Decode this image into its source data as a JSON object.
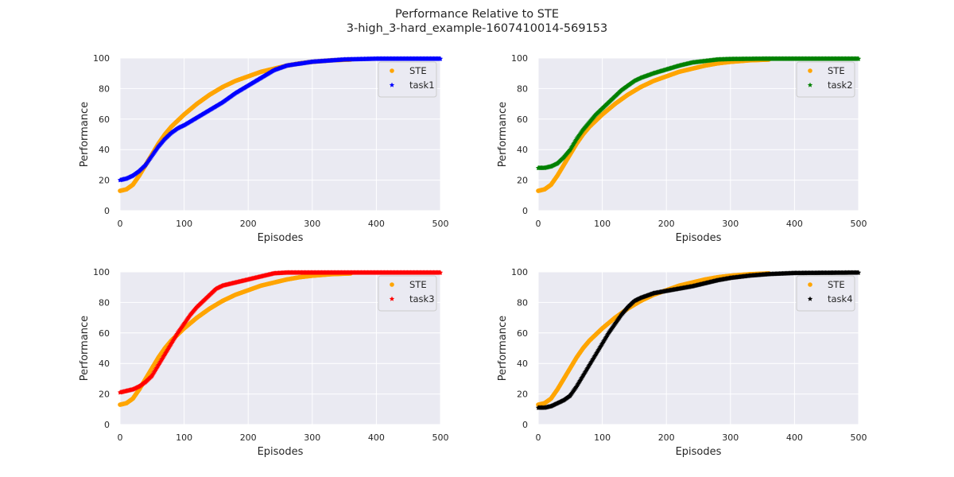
{
  "figure": {
    "title_line1": "Performance Relative to STE",
    "title_line2": "3-high_3-hard_example-1607410014-569153",
    "background": "#ffffff",
    "axes_facecolor": "#eaeaf2",
    "grid_color": "#ffffff"
  },
  "chart_data": [
    {
      "type": "scatter",
      "xlabel": "Episodes",
      "ylabel": "Performance",
      "xlim": [
        0,
        500
      ],
      "ylim": [
        0,
        100
      ],
      "xticks": [
        0,
        100,
        200,
        300,
        400,
        500
      ],
      "yticks": [
        0,
        20,
        40,
        60,
        80,
        100
      ],
      "grid": true,
      "legend_position": "top-right",
      "series": [
        {
          "name": "STE",
          "color": "#ffa500",
          "marker": "circle",
          "x_end": 360,
          "x": [
            0,
            10,
            20,
            30,
            40,
            50,
            60,
            70,
            80,
            100,
            120,
            140,
            160,
            180,
            200,
            220,
            240,
            260,
            280,
            300,
            330,
            360
          ],
          "y": [
            13,
            14,
            17,
            23,
            30,
            37,
            44,
            50,
            55,
            63,
            70,
            76,
            81,
            85,
            88,
            91,
            93,
            95,
            96.5,
            97.5,
            98.5,
            99
          ]
        },
        {
          "name": "task1",
          "color": "#0000ff",
          "marker": "star",
          "x_end": 500,
          "x": [
            0,
            10,
            20,
            30,
            40,
            50,
            60,
            70,
            80,
            90,
            100,
            120,
            140,
            160,
            180,
            200,
            220,
            240,
            260,
            300,
            350,
            400,
            500
          ],
          "y": [
            20,
            21,
            23,
            26,
            30,
            36,
            42,
            47,
            51,
            54,
            56,
            61,
            66,
            71,
            77,
            82,
            87,
            92,
            95,
            97.5,
            99,
            99.5,
            99.5
          ]
        }
      ]
    },
    {
      "type": "scatter",
      "xlabel": "Episodes",
      "ylabel": "Performance",
      "xlim": [
        0,
        500
      ],
      "ylim": [
        0,
        100
      ],
      "xticks": [
        0,
        100,
        200,
        300,
        400,
        500
      ],
      "yticks": [
        0,
        20,
        40,
        60,
        80,
        100
      ],
      "grid": true,
      "legend_position": "top-right",
      "series": [
        {
          "name": "STE",
          "color": "#ffa500",
          "marker": "circle",
          "x_end": 360,
          "x": [
            0,
            10,
            20,
            30,
            40,
            50,
            60,
            70,
            80,
            100,
            120,
            140,
            160,
            180,
            200,
            220,
            240,
            260,
            280,
            300,
            330,
            360
          ],
          "y": [
            13,
            14,
            17,
            23,
            30,
            37,
            44,
            50,
            55,
            63,
            70,
            76,
            81,
            85,
            88,
            91,
            93,
            95,
            96.5,
            97.5,
            98.5,
            99
          ]
        },
        {
          "name": "task2",
          "color": "#008000",
          "marker": "star",
          "x_end": 500,
          "x": [
            0,
            10,
            20,
            30,
            40,
            50,
            60,
            70,
            80,
            90,
            100,
            110,
            120,
            130,
            140,
            150,
            160,
            180,
            200,
            220,
            240,
            260,
            280,
            300,
            350,
            500
          ],
          "y": [
            28,
            28,
            29,
            31,
            35,
            40,
            47,
            53,
            58,
            63,
            67,
            71,
            75,
            79,
            82,
            85,
            87,
            90,
            92.5,
            95,
            97,
            98,
            99,
            99.3,
            99.5,
            99.5
          ]
        }
      ]
    },
    {
      "type": "scatter",
      "xlabel": "Episodes",
      "ylabel": "Performance",
      "xlim": [
        0,
        500
      ],
      "ylim": [
        0,
        100
      ],
      "xticks": [
        0,
        100,
        200,
        300,
        400,
        500
      ],
      "yticks": [
        0,
        20,
        40,
        60,
        80,
        100
      ],
      "grid": true,
      "legend_position": "top-right",
      "series": [
        {
          "name": "STE",
          "color": "#ffa500",
          "marker": "circle",
          "x_end": 360,
          "x": [
            0,
            10,
            20,
            30,
            40,
            50,
            60,
            70,
            80,
            100,
            120,
            140,
            160,
            180,
            200,
            220,
            240,
            260,
            280,
            300,
            330,
            360
          ],
          "y": [
            13,
            14,
            17,
            23,
            30,
            37,
            44,
            50,
            55,
            63,
            70,
            76,
            81,
            85,
            88,
            91,
            93,
            95,
            96.5,
            97.5,
            98.5,
            99
          ]
        },
        {
          "name": "task3",
          "color": "#ff0000",
          "marker": "star",
          "x_end": 500,
          "x": [
            0,
            10,
            20,
            30,
            40,
            50,
            60,
            70,
            80,
            90,
            100,
            110,
            120,
            130,
            140,
            150,
            160,
            180,
            200,
            220,
            240,
            260,
            300,
            500
          ],
          "y": [
            21,
            22,
            23,
            25,
            28,
            32,
            39,
            46,
            53,
            60,
            66,
            72,
            77,
            81,
            85,
            89,
            91,
            93,
            95,
            97,
            99,
            99.5,
            99.5,
            99.5
          ]
        }
      ]
    },
    {
      "type": "scatter",
      "xlabel": "Episodes",
      "ylabel": "Performance",
      "xlim": [
        0,
        500
      ],
      "ylim": [
        0,
        100
      ],
      "xticks": [
        0,
        100,
        200,
        300,
        400,
        500
      ],
      "yticks": [
        0,
        20,
        40,
        60,
        80,
        100
      ],
      "grid": true,
      "legend_position": "top-right",
      "series": [
        {
          "name": "STE",
          "color": "#ffa500",
          "marker": "circle",
          "x_end": 360,
          "x": [
            0,
            10,
            20,
            30,
            40,
            50,
            60,
            70,
            80,
            100,
            120,
            140,
            160,
            180,
            200,
            220,
            240,
            260,
            280,
            300,
            330,
            360
          ],
          "y": [
            13,
            14,
            17,
            23,
            30,
            37,
            44,
            50,
            55,
            63,
            70,
            76,
            81,
            85,
            88,
            91,
            93,
            95,
            96.5,
            97.5,
            98.5,
            99
          ]
        },
        {
          "name": "task4",
          "color": "#000000",
          "marker": "star",
          "x_end": 500,
          "x": [
            0,
            10,
            20,
            30,
            40,
            50,
            60,
            70,
            80,
            90,
            100,
            110,
            120,
            130,
            140,
            150,
            160,
            170,
            180,
            200,
            220,
            240,
            260,
            280,
            300,
            330,
            360,
            400,
            500
          ],
          "y": [
            11,
            11,
            12,
            14,
            16,
            19,
            25,
            32,
            39,
            46,
            53,
            60,
            66,
            72,
            77,
            81,
            83,
            84.5,
            86,
            87.5,
            89,
            90.5,
            92.5,
            94.5,
            96,
            97.5,
            98.5,
            99.2,
            99.5
          ]
        }
      ]
    }
  ]
}
